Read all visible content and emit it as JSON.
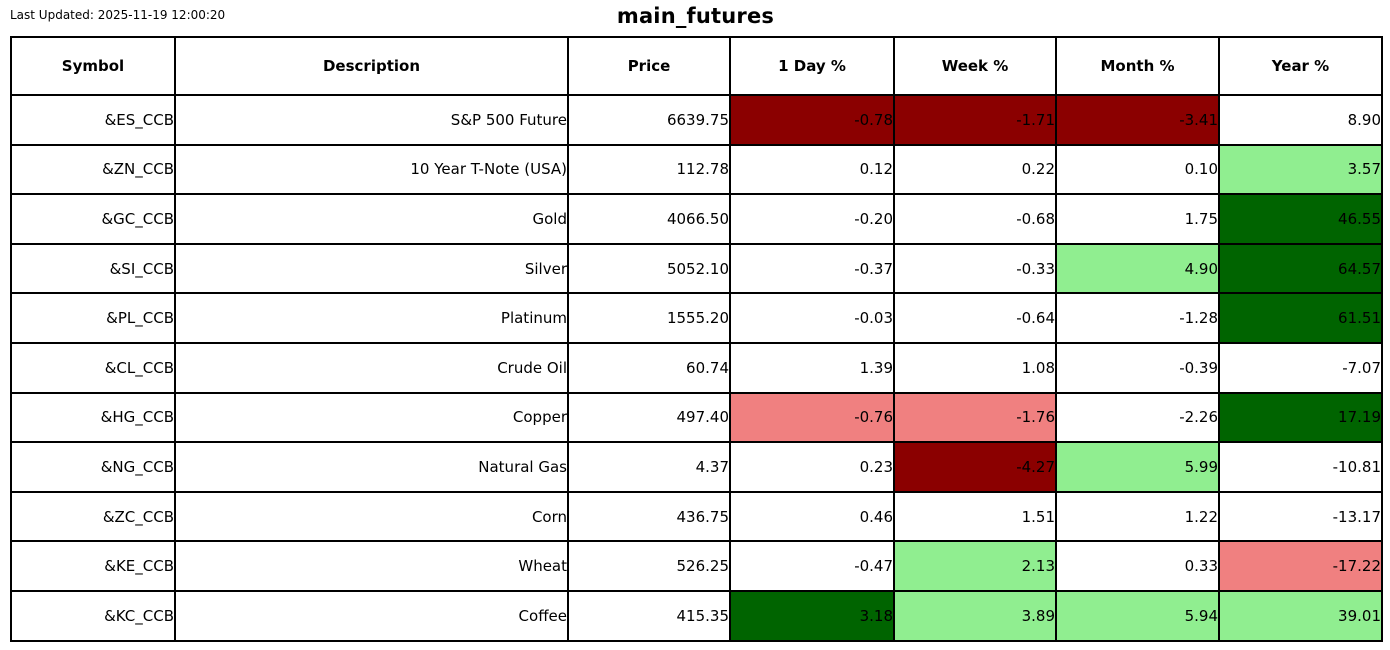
{
  "meta": {
    "last_updated": "Last Updated: 2025-11-19 12:00:20",
    "title": "main_futures"
  },
  "colors": {
    "white": "#ffffff",
    "darkred": "#8b0000",
    "lightcoral": "#f08080",
    "lightgreen": "#90ee90",
    "darkgreen": "#006400",
    "border": "#000000",
    "text": "#000000"
  },
  "table": {
    "headers": [
      "Symbol",
      "Description",
      "Price",
      "1 Day %",
      "Week %",
      "Month %",
      "Year %"
    ],
    "rows": [
      {
        "cells": [
          "&ES_CCB",
          "S&P 500 Future",
          "6639.75",
          "-0.78",
          "-1.71",
          "-3.41",
          "8.90"
        ],
        "bg": [
          "white",
          "white",
          "white",
          "darkred",
          "darkred",
          "darkred",
          "white"
        ]
      },
      {
        "cells": [
          "&ZN_CCB",
          "10 Year T-Note (USA)",
          "112.78",
          "0.12",
          "0.22",
          "0.10",
          "3.57"
        ],
        "bg": [
          "white",
          "white",
          "white",
          "white",
          "white",
          "white",
          "lightgreen"
        ]
      },
      {
        "cells": [
          "&GC_CCB",
          "Gold",
          "4066.50",
          "-0.20",
          "-0.68",
          "1.75",
          "46.55"
        ],
        "bg": [
          "white",
          "white",
          "white",
          "white",
          "white",
          "white",
          "darkgreen"
        ]
      },
      {
        "cells": [
          "&SI_CCB",
          "Silver",
          "5052.10",
          "-0.37",
          "-0.33",
          "4.90",
          "64.57"
        ],
        "bg": [
          "white",
          "white",
          "white",
          "white",
          "white",
          "lightgreen",
          "darkgreen"
        ]
      },
      {
        "cells": [
          "&PL_CCB",
          "Platinum",
          "1555.20",
          "-0.03",
          "-0.64",
          "-1.28",
          "61.51"
        ],
        "bg": [
          "white",
          "white",
          "white",
          "white",
          "white",
          "white",
          "darkgreen"
        ]
      },
      {
        "cells": [
          "&CL_CCB",
          "Crude Oil",
          "60.74",
          "1.39",
          "1.08",
          "-0.39",
          "-7.07"
        ],
        "bg": [
          "white",
          "white",
          "white",
          "white",
          "white",
          "white",
          "white"
        ]
      },
      {
        "cells": [
          "&HG_CCB",
          "Copper",
          "497.40",
          "-0.76",
          "-1.76",
          "-2.26",
          "17.19"
        ],
        "bg": [
          "white",
          "white",
          "white",
          "lightcoral",
          "lightcoral",
          "white",
          "darkgreen"
        ]
      },
      {
        "cells": [
          "&NG_CCB",
          "Natural Gas",
          "4.37",
          "0.23",
          "-4.27",
          "5.99",
          "-10.81"
        ],
        "bg": [
          "white",
          "white",
          "white",
          "white",
          "darkred",
          "lightgreen",
          "white"
        ]
      },
      {
        "cells": [
          "&ZC_CCB",
          "Corn",
          "436.75",
          "0.46",
          "1.51",
          "1.22",
          "-13.17"
        ],
        "bg": [
          "white",
          "white",
          "white",
          "white",
          "white",
          "white",
          "white"
        ]
      },
      {
        "cells": [
          "&KE_CCB",
          "Wheat",
          "526.25",
          "-0.47",
          "2.13",
          "0.33",
          "-17.22"
        ],
        "bg": [
          "white",
          "white",
          "white",
          "white",
          "lightgreen",
          "white",
          "lightcoral"
        ]
      },
      {
        "cells": [
          "&KC_CCB",
          "Coffee",
          "415.35",
          "3.18",
          "3.89",
          "5.94",
          "39.01"
        ],
        "bg": [
          "white",
          "white",
          "white",
          "darkgreen",
          "lightgreen",
          "lightgreen",
          "lightgreen"
        ]
      }
    ]
  },
  "chart_data": {
    "type": "table",
    "title": "main_futures",
    "last_updated": "2025-11-19 12:00:20",
    "columns": [
      "Symbol",
      "Description",
      "Price",
      "1 Day %",
      "Week %",
      "Month %",
      "Year %"
    ],
    "rows": [
      [
        "&ES_CCB",
        "S&P 500 Future",
        6639.75,
        -0.78,
        -1.71,
        -3.41,
        8.9
      ],
      [
        "&ZN_CCB",
        "10 Year T-Note (USA)",
        112.78,
        0.12,
        0.22,
        0.1,
        3.57
      ],
      [
        "&GC_CCB",
        "Gold",
        4066.5,
        -0.2,
        -0.68,
        1.75,
        46.55
      ],
      [
        "&SI_CCB",
        "Silver",
        5052.1,
        -0.37,
        -0.33,
        4.9,
        64.57
      ],
      [
        "&PL_CCB",
        "Platinum",
        1555.2,
        -0.03,
        -0.64,
        -1.28,
        61.51
      ],
      [
        "&CL_CCB",
        "Crude Oil",
        60.74,
        1.39,
        1.08,
        -0.39,
        -7.07
      ],
      [
        "&HG_CCB",
        "Copper",
        497.4,
        -0.76,
        -1.76,
        -2.26,
        17.19
      ],
      [
        "&NG_CCB",
        "Natural Gas",
        4.37,
        0.23,
        -4.27,
        5.99,
        -10.81
      ],
      [
        "&ZC_CCB",
        "Corn",
        436.75,
        0.46,
        1.51,
        1.22,
        -13.17
      ],
      [
        "&KE_CCB",
        "Wheat",
        526.25,
        -0.47,
        2.13,
        0.33,
        -17.22
      ],
      [
        "&KC_CCB",
        "Coffee",
        415.35,
        3.18,
        3.89,
        5.94,
        39.01
      ]
    ],
    "cell_highlight_rule": "percent cells shaded: darkred = strong loss, lightcoral = mild loss, lightgreen = mild gain, darkgreen = strong gain, white = neutral"
  }
}
